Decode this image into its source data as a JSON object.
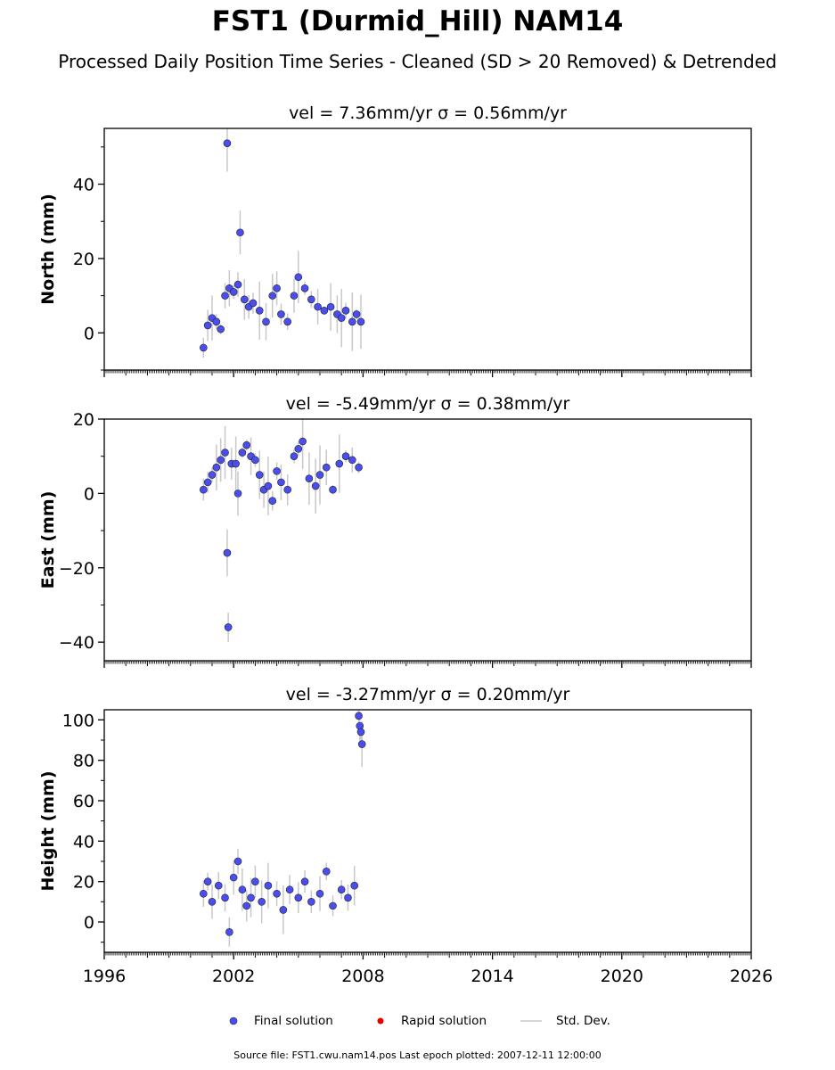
{
  "page": {
    "title": "FST1 (Durmid_Hill) NAM14",
    "subtitle": "Processed Daily Position Time Series - Cleaned (SD > 20 Removed) & Detrended",
    "source_line": "Source file: FST1.cwu.nam14.pos  Last epoch plotted: 2007-12-11 12:00:00"
  },
  "legend": {
    "final": "Final solution",
    "rapid": "Rapid solution",
    "std": "Std. Dev.",
    "final_color": "#4a4ef0",
    "rapid_color": "#e00000",
    "std_color": "#c8c8c8"
  },
  "chart_data": [
    {
      "type": "scatter",
      "panel": "north",
      "title": "vel = 7.36mm/yr   σ = 0.56mm/yr",
      "ylabel": "North (mm)",
      "xlabel": "",
      "xlim": [
        1996,
        2026
      ],
      "ylim": [
        -10,
        55
      ],
      "yticks": [
        0,
        20,
        40
      ],
      "xticks": [
        1996,
        2002,
        2008,
        2014,
        2020,
        2026
      ],
      "show_xtick_labels": false,
      "series": [
        {
          "name": "Final solution",
          "points": [
            [
              2000.6,
              -4
            ],
            [
              2000.8,
              2
            ],
            [
              2001.0,
              4
            ],
            [
              2001.2,
              3
            ],
            [
              2001.4,
              1
            ],
            [
              2001.6,
              10
            ],
            [
              2001.7,
              51
            ],
            [
              2001.8,
              12
            ],
            [
              2002.0,
              11
            ],
            [
              2002.2,
              13
            ],
            [
              2002.3,
              27
            ],
            [
              2002.5,
              9
            ],
            [
              2002.7,
              7
            ],
            [
              2002.9,
              8
            ],
            [
              2003.2,
              6
            ],
            [
              2003.5,
              3
            ],
            [
              2003.8,
              10
            ],
            [
              2004.0,
              12
            ],
            [
              2004.2,
              5
            ],
            [
              2004.5,
              3
            ],
            [
              2004.8,
              10
            ],
            [
              2005.0,
              15
            ],
            [
              2005.3,
              12
            ],
            [
              2005.6,
              9
            ],
            [
              2005.9,
              7
            ],
            [
              2006.2,
              6
            ],
            [
              2006.5,
              7
            ],
            [
              2006.8,
              5
            ],
            [
              2007.0,
              4
            ],
            [
              2007.2,
              6
            ],
            [
              2007.5,
              3
            ],
            [
              2007.7,
              5
            ],
            [
              2007.9,
              3
            ]
          ],
          "sd_min": 1.0,
          "sd_max": 8.0
        }
      ]
    },
    {
      "type": "scatter",
      "panel": "east",
      "title": "vel = -5.49mm/yr   σ = 0.38mm/yr",
      "ylabel": "East (mm)",
      "xlabel": "",
      "xlim": [
        1996,
        2026
      ],
      "ylim": [
        -45,
        20
      ],
      "yticks": [
        -40,
        -20,
        0,
        20
      ],
      "xticks": [
        1996,
        2002,
        2008,
        2014,
        2020,
        2026
      ],
      "show_xtick_labels": false,
      "series": [
        {
          "name": "Final solution",
          "points": [
            [
              2000.6,
              1
            ],
            [
              2000.8,
              3
            ],
            [
              2001.0,
              5
            ],
            [
              2001.2,
              7
            ],
            [
              2001.4,
              9
            ],
            [
              2001.6,
              11
            ],
            [
              2001.7,
              -16
            ],
            [
              2001.75,
              -36
            ],
            [
              2001.9,
              8
            ],
            [
              2002.1,
              8
            ],
            [
              2002.2,
              0
            ],
            [
              2002.4,
              11
            ],
            [
              2002.6,
              13
            ],
            [
              2002.8,
              10
            ],
            [
              2003.0,
              9
            ],
            [
              2003.2,
              5
            ],
            [
              2003.4,
              1
            ],
            [
              2003.6,
              2
            ],
            [
              2003.8,
              -2
            ],
            [
              2004.0,
              6
            ],
            [
              2004.2,
              3
            ],
            [
              2004.5,
              1
            ],
            [
              2004.8,
              10
            ],
            [
              2005.0,
              12
            ],
            [
              2005.2,
              14
            ],
            [
              2005.5,
              4
            ],
            [
              2005.8,
              2
            ],
            [
              2006.0,
              5
            ],
            [
              2006.3,
              7
            ],
            [
              2006.6,
              1
            ],
            [
              2006.9,
              8
            ],
            [
              2007.2,
              10
            ],
            [
              2007.5,
              9
            ],
            [
              2007.8,
              7
            ]
          ],
          "sd_min": 1.0,
          "sd_max": 8.0
        }
      ]
    },
    {
      "type": "scatter",
      "panel": "height",
      "title": "vel = -3.27mm/yr   σ = 0.20mm/yr",
      "ylabel": "Height (mm)",
      "xlabel": "",
      "xlim": [
        1996,
        2026
      ],
      "ylim": [
        -15,
        105
      ],
      "yticks": [
        0,
        20,
        40,
        60,
        80,
        100
      ],
      "xticks": [
        1996,
        2002,
        2008,
        2014,
        2020,
        2026
      ],
      "show_xtick_labels": true,
      "series": [
        {
          "name": "Final solution",
          "points": [
            [
              2000.6,
              14
            ],
            [
              2000.8,
              20
            ],
            [
              2001.0,
              10
            ],
            [
              2001.3,
              18
            ],
            [
              2001.6,
              12
            ],
            [
              2001.8,
              -5
            ],
            [
              2002.0,
              22
            ],
            [
              2002.2,
              30
            ],
            [
              2002.4,
              16
            ],
            [
              2002.6,
              8
            ],
            [
              2002.8,
              12
            ],
            [
              2003.0,
              20
            ],
            [
              2003.3,
              10
            ],
            [
              2003.6,
              18
            ],
            [
              2004.0,
              14
            ],
            [
              2004.3,
              6
            ],
            [
              2004.6,
              16
            ],
            [
              2005.0,
              12
            ],
            [
              2005.3,
              20
            ],
            [
              2005.6,
              10
            ],
            [
              2006.0,
              14
            ],
            [
              2006.3,
              25
            ],
            [
              2006.6,
              8
            ],
            [
              2007.0,
              16
            ],
            [
              2007.3,
              12
            ],
            [
              2007.6,
              18
            ],
            [
              2007.8,
              102
            ],
            [
              2007.85,
              97
            ],
            [
              2007.9,
              94
            ],
            [
              2007.95,
              88
            ]
          ],
          "sd_min": 4.0,
          "sd_max": 12.0
        }
      ]
    }
  ]
}
